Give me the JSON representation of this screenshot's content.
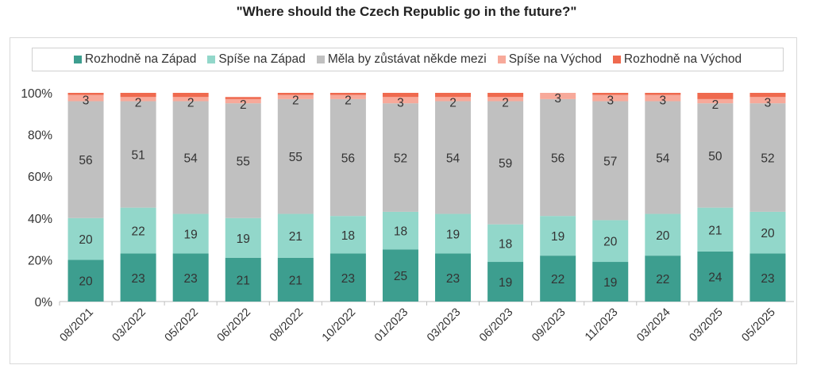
{
  "chart_data": {
    "type": "bar",
    "stacked": true,
    "title": "\"Where should the Czech Republic go in the future?\"",
    "xlabel": "",
    "ylabel": "",
    "ylim": [
      0,
      100
    ],
    "yticks": [
      "0%",
      "20%",
      "40%",
      "60%",
      "80%",
      "100%"
    ],
    "legend_position": "top",
    "categories": [
      "08/2021",
      "03/2022",
      "05/2022",
      "06/2022",
      "08/2022",
      "10/2022",
      "01/2023",
      "03/2023",
      "06/2023",
      "09/2023",
      "11/2023",
      "03/2024",
      "03/2025",
      "05/2025"
    ],
    "series": [
      {
        "name": "Rozhodně na Západ",
        "color": "#3d9e8f",
        "labeled": true,
        "values": [
          20,
          23,
          23,
          21,
          21,
          23,
          25,
          23,
          19,
          22,
          19,
          22,
          24,
          23
        ]
      },
      {
        "name": "Spíše na Západ",
        "color": "#92d7ca",
        "labeled": true,
        "values": [
          20,
          22,
          19,
          19,
          21,
          18,
          18,
          19,
          18,
          19,
          20,
          20,
          21,
          20
        ]
      },
      {
        "name": "Měla by zůstávat někde mezi",
        "color": "#c0c0c0",
        "labeled": true,
        "values": [
          56,
          51,
          54,
          55,
          55,
          56,
          52,
          54,
          59,
          56,
          57,
          54,
          50,
          52
        ]
      },
      {
        "name": "Spíše na Východ",
        "color": "#f7a99a",
        "labeled": true,
        "values": [
          3,
          2,
          2,
          2,
          2,
          2,
          3,
          2,
          2,
          3,
          3,
          3,
          2,
          3
        ]
      },
      {
        "name": "Rozhodně na Východ",
        "color": "#ef6a4f",
        "labeled": false,
        "values": [
          1,
          2,
          2,
          1,
          1,
          1,
          2,
          2,
          2,
          1,
          1,
          1,
          3,
          2
        ]
      }
    ]
  }
}
